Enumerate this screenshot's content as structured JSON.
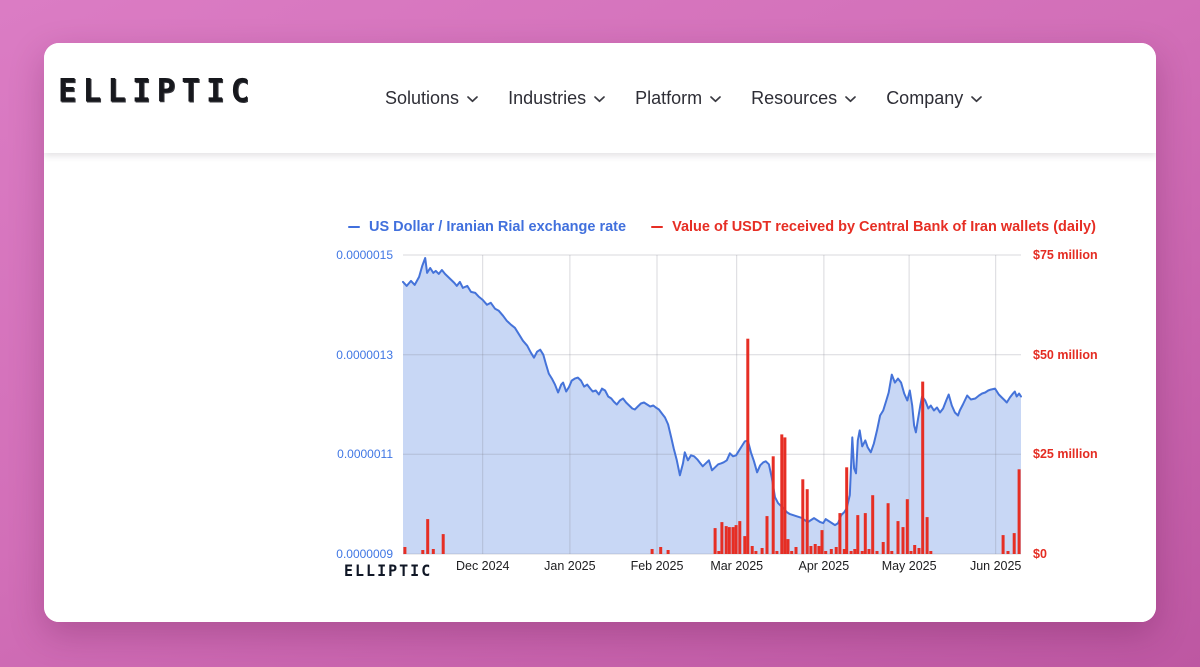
{
  "header": {
    "logo_text": "ELLIPTIC",
    "nav_items": [
      {
        "label": "Solutions"
      },
      {
        "label": "Industries"
      },
      {
        "label": "Platform"
      },
      {
        "label": "Resources"
      },
      {
        "label": "Company"
      }
    ]
  },
  "chart": {
    "watermark": "ELLIPTIC",
    "grid_color": "rgba(130,130,142,0.30)",
    "colors": {
      "line_blue": "#4573d9",
      "area_fill": "rgba(74,121,221,0.30)",
      "bar_red": "#e33128",
      "axis_left_text": "#4077e4",
      "axis_right_text": "#e42c22"
    }
  },
  "chart_data": {
    "type": "combo: area line (left axis) + daily bars (right axis)",
    "legend_position": "top",
    "grid": true,
    "x_axis": {
      "ticks": [
        {
          "label": "Dec 2024",
          "pos": 0.129
        },
        {
          "label": "Jan 2025",
          "pos": 0.27
        },
        {
          "label": "Feb 2025",
          "pos": 0.411
        },
        {
          "label": "Mar 2025",
          "pos": 0.54
        },
        {
          "label": "Apr 2025",
          "pos": 0.681
        },
        {
          "label": "May 2025",
          "pos": 0.819
        },
        {
          "label": "Jun 2025",
          "pos": 0.959
        }
      ]
    },
    "y_axis_left": {
      "unit": "USD per Iranian Rial (values shown ×1e-6)",
      "min": 0.9,
      "max": 1.5,
      "ticks": [
        {
          "label": "0.0000015",
          "value": 1.5
        },
        {
          "label": "0.0000013",
          "value": 1.3
        },
        {
          "label": "0.0000011",
          "value": 1.1
        },
        {
          "label": "0.0000009",
          "value": 0.9
        }
      ]
    },
    "y_axis_right": {
      "unit": "USD millions",
      "min": 0,
      "max": 75,
      "ticks": [
        {
          "label": "$75 million",
          "value": 75
        },
        {
          "label": "$50 million",
          "value": 50
        },
        {
          "label": "$25 million",
          "value": 25
        },
        {
          "label": "$0",
          "value": 0
        }
      ]
    },
    "series": [
      {
        "name": "US Dollar / Iranian Rial exchange rate",
        "type": "area-line",
        "axis": "left",
        "color": "#4170dd",
        "points": [
          [
            0,
            1.446
          ],
          [
            0.006,
            1.438
          ],
          [
            0.013,
            1.448
          ],
          [
            0.019,
            1.44
          ],
          [
            0.026,
            1.456
          ],
          [
            0.031,
            1.478
          ],
          [
            0.036,
            1.494
          ],
          [
            0.039,
            1.464
          ],
          [
            0.044,
            1.474
          ],
          [
            0.049,
            1.464
          ],
          [
            0.053,
            1.468
          ],
          [
            0.058,
            1.462
          ],
          [
            0.063,
            1.47
          ],
          [
            0.068,
            1.462
          ],
          [
            0.073,
            1.456
          ],
          [
            0.078,
            1.45
          ],
          [
            0.083,
            1.444
          ],
          [
            0.087,
            1.438
          ],
          [
            0.092,
            1.446
          ],
          [
            0.097,
            1.434
          ],
          [
            0.104,
            1.438
          ],
          [
            0.11,
            1.426
          ],
          [
            0.117,
            1.424
          ],
          [
            0.123,
            1.416
          ],
          [
            0.129,
            1.41
          ],
          [
            0.136,
            1.4
          ],
          [
            0.142,
            1.404
          ],
          [
            0.149,
            1.392
          ],
          [
            0.155,
            1.388
          ],
          [
            0.162,
            1.378
          ],
          [
            0.168,
            1.368
          ],
          [
            0.175,
            1.36
          ],
          [
            0.181,
            1.354
          ],
          [
            0.188,
            1.34
          ],
          [
            0.194,
            1.328
          ],
          [
            0.201,
            1.318
          ],
          [
            0.207,
            1.304
          ],
          [
            0.212,
            1.294
          ],
          [
            0.217,
            1.306
          ],
          [
            0.222,
            1.31
          ],
          [
            0.227,
            1.3
          ],
          [
            0.231,
            1.282
          ],
          [
            0.236,
            1.262
          ],
          [
            0.241,
            1.252
          ],
          [
            0.246,
            1.24
          ],
          [
            0.251,
            1.224
          ],
          [
            0.256,
            1.24
          ],
          [
            0.259,
            1.244
          ],
          [
            0.264,
            1.226
          ],
          [
            0.269,
            1.236
          ],
          [
            0.273,
            1.248
          ],
          [
            0.278,
            1.252
          ],
          [
            0.283,
            1.254
          ],
          [
            0.288,
            1.248
          ],
          [
            0.293,
            1.236
          ],
          [
            0.298,
            1.24
          ],
          [
            0.303,
            1.232
          ],
          [
            0.307,
            1.226
          ],
          [
            0.312,
            1.228
          ],
          [
            0.317,
            1.22
          ],
          [
            0.322,
            1.232
          ],
          [
            0.327,
            1.228
          ],
          [
            0.332,
            1.216
          ],
          [
            0.337,
            1.212
          ],
          [
            0.341,
            1.206
          ],
          [
            0.346,
            1.2
          ],
          [
            0.351,
            1.208
          ],
          [
            0.356,
            1.212
          ],
          [
            0.361,
            1.204
          ],
          [
            0.366,
            1.198
          ],
          [
            0.371,
            1.192
          ],
          [
            0.375,
            1.19
          ],
          [
            0.38,
            1.196
          ],
          [
            0.385,
            1.202
          ],
          [
            0.39,
            1.204
          ],
          [
            0.395,
            1.2
          ],
          [
            0.4,
            1.196
          ],
          [
            0.405,
            1.198
          ],
          [
            0.409,
            1.194
          ],
          [
            0.414,
            1.19
          ],
          [
            0.419,
            1.182
          ],
          [
            0.424,
            1.174
          ],
          [
            0.429,
            1.16
          ],
          [
            0.434,
            1.134
          ],
          [
            0.438,
            1.112
          ],
          [
            0.443,
            1.088
          ],
          [
            0.448,
            1.058
          ],
          [
            0.453,
            1.082
          ],
          [
            0.456,
            1.104
          ],
          [
            0.461,
            1.088
          ],
          [
            0.466,
            1.098
          ],
          [
            0.471,
            1.096
          ],
          [
            0.476,
            1.09
          ],
          [
            0.481,
            1.082
          ],
          [
            0.485,
            1.076
          ],
          [
            0.49,
            1.082
          ],
          [
            0.495,
            1.088
          ],
          [
            0.5,
            1.068
          ],
          [
            0.505,
            1.074
          ],
          [
            0.51,
            1.08
          ],
          [
            0.515,
            1.082
          ],
          [
            0.519,
            1.084
          ],
          [
            0.524,
            1.088
          ],
          [
            0.529,
            1.102
          ],
          [
            0.534,
            1.096
          ],
          [
            0.539,
            1.098
          ],
          [
            0.544,
            1.108
          ],
          [
            0.549,
            1.118
          ],
          [
            0.553,
            1.126
          ],
          [
            0.558,
            1.128
          ],
          [
            0.563,
            1.104
          ],
          [
            0.568,
            1.086
          ],
          [
            0.573,
            1.064
          ],
          [
            0.578,
            1.078
          ],
          [
            0.583,
            1.084
          ],
          [
            0.587,
            1.086
          ],
          [
            0.592,
            1.08
          ],
          [
            0.597,
            1.052
          ],
          [
            0.602,
            1.014
          ],
          [
            0.607,
            1.002
          ],
          [
            0.612,
            0.996
          ],
          [
            0.617,
            0.99
          ],
          [
            0.621,
            0.984
          ],
          [
            0.626,
            0.98
          ],
          [
            0.631,
            0.978
          ],
          [
            0.636,
            0.976
          ],
          [
            0.641,
            0.974
          ],
          [
            0.646,
            0.972
          ],
          [
            0.65,
            0.968
          ],
          [
            0.655,
            0.964
          ],
          [
            0.66,
            0.968
          ],
          [
            0.665,
            0.972
          ],
          [
            0.67,
            0.968
          ],
          [
            0.675,
            0.964
          ],
          [
            0.68,
            0.962
          ],
          [
            0.684,
            0.97
          ],
          [
            0.689,
            0.966
          ],
          [
            0.694,
            0.962
          ],
          [
            0.699,
            0.958
          ],
          [
            0.704,
            0.962
          ],
          [
            0.709,
            0.978
          ],
          [
            0.714,
            0.984
          ],
          [
            0.718,
            0.992
          ],
          [
            0.723,
            1.018
          ],
          [
            0.727,
            1.134
          ],
          [
            0.73,
            1.072
          ],
          [
            0.733,
            1.062
          ],
          [
            0.736,
            1.128
          ],
          [
            0.739,
            1.148
          ],
          [
            0.743,
            1.116
          ],
          [
            0.748,
            1.128
          ],
          [
            0.752,
            1.114
          ],
          [
            0.757,
            1.104
          ],
          [
            0.762,
            1.122
          ],
          [
            0.767,
            1.148
          ],
          [
            0.772,
            1.178
          ],
          [
            0.777,
            1.188
          ],
          [
            0.782,
            1.208
          ],
          [
            0.786,
            1.224
          ],
          [
            0.791,
            1.26
          ],
          [
            0.796,
            1.244
          ],
          [
            0.801,
            1.252
          ],
          [
            0.806,
            1.244
          ],
          [
            0.811,
            1.222
          ],
          [
            0.816,
            1.208
          ],
          [
            0.82,
            1.228
          ],
          [
            0.824,
            1.198
          ],
          [
            0.827,
            1.158
          ],
          [
            0.83,
            1.144
          ],
          [
            0.833,
            1.168
          ],
          [
            0.837,
            1.198
          ],
          [
            0.84,
            1.216
          ],
          [
            0.845,
            1.208
          ],
          [
            0.85,
            1.192
          ],
          [
            0.854,
            1.198
          ],
          [
            0.859,
            1.188
          ],
          [
            0.864,
            1.194
          ],
          [
            0.869,
            1.184
          ],
          [
            0.874,
            1.192
          ],
          [
            0.879,
            1.208
          ],
          [
            0.883,
            1.22
          ],
          [
            0.888,
            1.198
          ],
          [
            0.893,
            1.184
          ],
          [
            0.898,
            1.178
          ],
          [
            0.901,
            1.188
          ],
          [
            0.906,
            1.2
          ],
          [
            0.913,
            1.218
          ],
          [
            0.919,
            1.21
          ],
          [
            0.926,
            1.212
          ],
          [
            0.932,
            1.218
          ],
          [
            0.937,
            1.222
          ],
          [
            0.942,
            1.224
          ],
          [
            0.947,
            1.228
          ],
          [
            0.951,
            1.23
          ],
          [
            0.958,
            1.232
          ],
          [
            0.964,
            1.22
          ],
          [
            0.969,
            1.214
          ],
          [
            0.974,
            1.208
          ],
          [
            0.977,
            1.204
          ],
          [
            0.982,
            1.214
          ],
          [
            0.987,
            1.222
          ],
          [
            0.99,
            1.226
          ],
          [
            0.993,
            1.216
          ],
          [
            0.997,
            1.222
          ],
          [
            1,
            1.216
          ]
        ]
      },
      {
        "name": "Value of USDT received by Central Bank of Iran wallets (daily)",
        "type": "bar",
        "axis": "right",
        "color": "#e62e24",
        "points": [
          [
            0.003,
            1.75
          ],
          [
            0.032,
            1.0
          ],
          [
            0.04,
            8.75
          ],
          [
            0.049,
            1.25
          ],
          [
            0.065,
            5.0
          ],
          [
            0.403,
            1.25
          ],
          [
            0.417,
            1.75
          ],
          [
            0.429,
            1.0
          ],
          [
            0.505,
            6.5
          ],
          [
            0.511,
            0.75
          ],
          [
            0.516,
            8.0
          ],
          [
            0.523,
            7.0
          ],
          [
            0.528,
            6.75
          ],
          [
            0.534,
            6.75
          ],
          [
            0.539,
            7.25
          ],
          [
            0.545,
            8.25
          ],
          [
            0.553,
            4.5
          ],
          [
            0.558,
            54.0
          ],
          [
            0.565,
            2.0
          ],
          [
            0.571,
            0.75
          ],
          [
            0.581,
            1.5
          ],
          [
            0.589,
            9.5
          ],
          [
            0.599,
            24.5
          ],
          [
            0.605,
            0.75
          ],
          [
            0.613,
            30.0
          ],
          [
            0.618,
            29.25
          ],
          [
            0.623,
            3.75
          ],
          [
            0.629,
            0.75
          ],
          [
            0.636,
            1.75
          ],
          [
            0.647,
            18.75
          ],
          [
            0.654,
            16.25
          ],
          [
            0.66,
            2.0
          ],
          [
            0.667,
            2.5
          ],
          [
            0.673,
            2.0
          ],
          [
            0.678,
            6.0
          ],
          [
            0.684,
            0.75
          ],
          [
            0.693,
            1.25
          ],
          [
            0.701,
            1.75
          ],
          [
            0.707,
            10.25
          ],
          [
            0.714,
            1.25
          ],
          [
            0.718,
            21.75
          ],
          [
            0.725,
            0.75
          ],
          [
            0.731,
            1.25
          ],
          [
            0.736,
            9.75
          ],
          [
            0.743,
            0.75
          ],
          [
            0.748,
            10.25
          ],
          [
            0.754,
            1.25
          ],
          [
            0.76,
            14.75
          ],
          [
            0.767,
            0.75
          ],
          [
            0.777,
            3.0
          ],
          [
            0.785,
            12.75
          ],
          [
            0.791,
            0.75
          ],
          [
            0.801,
            8.25
          ],
          [
            0.809,
            6.75
          ],
          [
            0.816,
            13.75
          ],
          [
            0.822,
            0.75
          ],
          [
            0.828,
            2.25
          ],
          [
            0.835,
            1.5
          ],
          [
            0.841,
            43.25
          ],
          [
            0.848,
            9.25
          ],
          [
            0.854,
            0.75
          ],
          [
            0.971,
            4.75
          ],
          [
            0.979,
            0.75
          ],
          [
            0.989,
            5.25
          ],
          [
            0.997,
            21.25
          ]
        ]
      }
    ]
  }
}
